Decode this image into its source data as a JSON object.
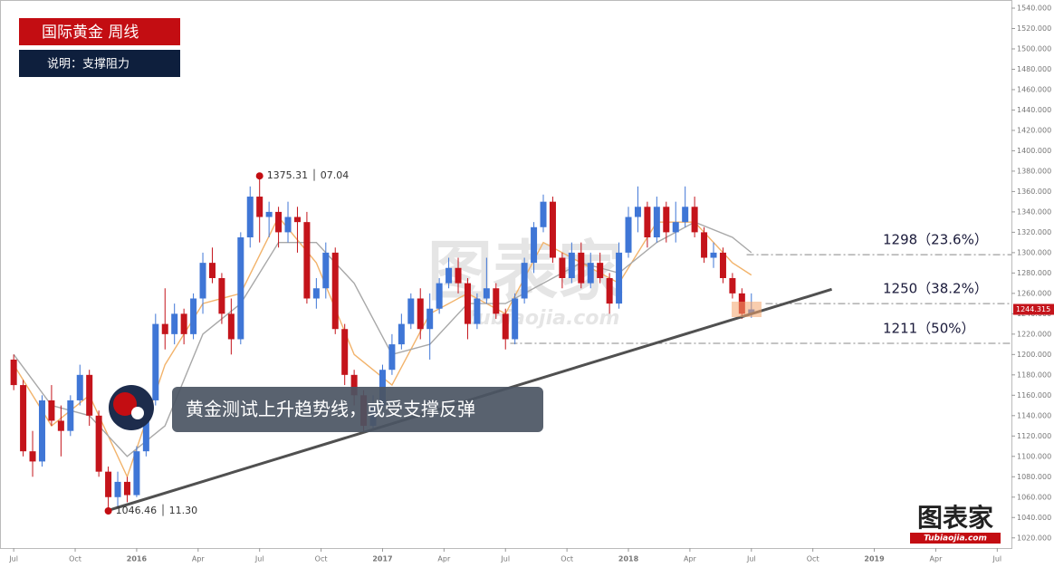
{
  "chart_data": {
    "type": "candlestick",
    "title": "国际黄金 周线",
    "subtitle": "说明：支撑阻力",
    "callout": "黄金测试上升趋势线，或受支撑反弹",
    "watermark": "图表家",
    "watermark_sub": "tubiaojia.com",
    "logo": "图表家",
    "logo_sub": "Tubiaojia.com",
    "up_color": "#3f76d6",
    "down_color": "#c4141b",
    "x": [
      0,
      2,
      4,
      6,
      8,
      10,
      12,
      14,
      16,
      18,
      20,
      22,
      24,
      26,
      28,
      30,
      32,
      34,
      36,
      38,
      40,
      42,
      44,
      46,
      48,
      50,
      52,
      54,
      56,
      58,
      60,
      62,
      64,
      66,
      68,
      70,
      72,
      74,
      76,
      78,
      80,
      82,
      84,
      86,
      88,
      90,
      92,
      94,
      96,
      98,
      100,
      102,
      104,
      106,
      108,
      110,
      112,
      114,
      116,
      118,
      120,
      122,
      124,
      126,
      128,
      130,
      132,
      134,
      136,
      138,
      140,
      142,
      144,
      146,
      148,
      150,
      152,
      154,
      156
    ],
    "open": [
      1195,
      1170,
      1105,
      1095,
      1155,
      1135,
      1125,
      1155,
      1180,
      1140,
      1085,
      1060,
      1075,
      1062,
      1105,
      1155,
      1230,
      1220,
      1240,
      1220,
      1255,
      1290,
      1275,
      1240,
      1215,
      1315,
      1355,
      1335,
      1340,
      1320,
      1335,
      1330,
      1255,
      1265,
      1300,
      1225,
      1180,
      1160,
      1130,
      1150,
      1185,
      1210,
      1230,
      1255,
      1225,
      1245,
      1270,
      1285,
      1270,
      1230,
      1255,
      1265,
      1240,
      1215,
      1255,
      1290,
      1325,
      1350,
      1295,
      1275,
      1300,
      1270,
      1290,
      1275,
      1250,
      1300,
      1335,
      1345,
      1315,
      1345,
      1320,
      1330,
      1345,
      1320,
      1295,
      1300,
      1275,
      1260,
      1240
    ],
    "high": [
      1200,
      1175,
      1125,
      1160,
      1170,
      1150,
      1160,
      1190,
      1185,
      1145,
      1090,
      1085,
      1080,
      1110,
      1160,
      1240,
      1265,
      1250,
      1245,
      1260,
      1300,
      1305,
      1280,
      1255,
      1320,
      1365,
      1375.31,
      1350,
      1345,
      1350,
      1345,
      1340,
      1275,
      1310,
      1305,
      1230,
      1185,
      1165,
      1160,
      1190,
      1220,
      1240,
      1260,
      1265,
      1260,
      1275,
      1295,
      1295,
      1275,
      1260,
      1295,
      1270,
      1245,
      1260,
      1295,
      1330,
      1357,
      1355,
      1300,
      1310,
      1310,
      1300,
      1300,
      1280,
      1310,
      1345,
      1365,
      1350,
      1355,
      1350,
      1350,
      1365,
      1355,
      1325,
      1310,
      1305,
      1280,
      1265,
      1260
    ],
    "low": [
      1165,
      1100,
      1080,
      1090,
      1130,
      1100,
      1120,
      1150,
      1130,
      1080,
      1046.46,
      1050,
      1055,
      1060,
      1100,
      1150,
      1205,
      1210,
      1210,
      1215,
      1240,
      1270,
      1230,
      1200,
      1210,
      1305,
      1310,
      1315,
      1305,
      1310,
      1300,
      1250,
      1245,
      1255,
      1220,
      1170,
      1150,
      1123,
      1125,
      1145,
      1180,
      1205,
      1225,
      1215,
      1195,
      1240,
      1265,
      1260,
      1215,
      1225,
      1250,
      1235,
      1205,
      1210,
      1250,
      1280,
      1320,
      1290,
      1265,
      1270,
      1265,
      1265,
      1270,
      1240,
      1245,
      1295,
      1320,
      1305,
      1310,
      1310,
      1310,
      1325,
      1315,
      1290,
      1285,
      1270,
      1255,
      1235,
      1236
    ],
    "close": [
      1170,
      1105,
      1095,
      1155,
      1135,
      1125,
      1155,
      1180,
      1140,
      1085,
      1060,
      1075,
      1062,
      1105,
      1155,
      1230,
      1220,
      1240,
      1220,
      1255,
      1290,
      1275,
      1240,
      1215,
      1315,
      1355,
      1335,
      1340,
      1320,
      1335,
      1330,
      1255,
      1265,
      1300,
      1225,
      1180,
      1160,
      1130,
      1150,
      1185,
      1210,
      1230,
      1255,
      1225,
      1245,
      1270,
      1285,
      1270,
      1230,
      1255,
      1265,
      1240,
      1215,
      1255,
      1290,
      1325,
      1350,
      1295,
      1275,
      1300,
      1270,
      1290,
      1275,
      1250,
      1300,
      1335,
      1345,
      1315,
      1345,
      1320,
      1330,
      1345,
      1320,
      1295,
      1300,
      1275,
      1260,
      1240,
      1244.315
    ],
    "last_label": "1244.315",
    "lines": [
      {
        "color": "#f2b36b",
        "x": [
          0,
          8,
          16,
          24,
          32,
          40,
          48,
          56,
          64,
          72,
          80,
          88,
          96,
          104,
          112,
          120,
          128,
          136,
          144,
          152,
          156
        ],
        "values": [
          1190,
          1130,
          1160,
          1080,
          1190,
          1250,
          1260,
          1335,
          1290,
          1200,
          1170,
          1240,
          1260,
          1240,
          1310,
          1290,
          1270,
          1330,
          1330,
          1290,
          1278
        ]
      },
      {
        "color": "#a8a8a8",
        "x": [
          0,
          8,
          16,
          24,
          32,
          40,
          48,
          56,
          64,
          72,
          80,
          88,
          96,
          104,
          112,
          120,
          128,
          136,
          144,
          152,
          156
        ],
        "values": [
          1200,
          1150,
          1140,
          1100,
          1130,
          1220,
          1250,
          1310,
          1310,
          1270,
          1200,
          1210,
          1250,
          1250,
          1270,
          1290,
          1280,
          1310,
          1330,
          1315,
          1300
        ]
      }
    ],
    "trendline": {
      "color": "#505050",
      "x": [
        20,
        173
      ],
      "values": [
        1047,
        1264
      ]
    },
    "levels": [
      {
        "value": 1298,
        "start": 155,
        "label": "1298（23.6%）"
      },
      {
        "value": 1250,
        "start": 159,
        "label": "1250（38.2%）"
      },
      {
        "value": 1211,
        "start": 105,
        "label": "1211（50%）"
      }
    ],
    "points": [
      {
        "x": 52,
        "value": 1375.31,
        "label": "1375.31 │ 07.04"
      },
      {
        "x": 20,
        "value": 1046.46,
        "label": "1046.46 │ 11.30"
      }
    ],
    "xlim": [
      -2.9,
      211
    ],
    "xticks": [
      {
        "value": 0,
        "label": "Jul"
      },
      {
        "value": 13,
        "label": "Oct"
      },
      {
        "value": 26,
        "label": "2016"
      },
      {
        "value": 39,
        "label": "Apr"
      },
      {
        "value": 52,
        "label": "Jul"
      },
      {
        "value": 65,
        "label": "Oct"
      },
      {
        "value": 78,
        "label": "2017"
      },
      {
        "value": 91,
        "label": "Apr"
      },
      {
        "value": 104,
        "label": "Jul"
      },
      {
        "value": 117,
        "label": "Oct"
      },
      {
        "value": 130,
        "label": "2018"
      },
      {
        "value": 143,
        "label": "Apr"
      },
      {
        "value": 156,
        "label": "Jul"
      },
      {
        "value": 169,
        "label": "Oct"
      },
      {
        "value": 182,
        "label": "2019"
      },
      {
        "value": 195,
        "label": "Apr"
      },
      {
        "value": 208,
        "label": "Jul"
      }
    ],
    "ylim": [
      1010,
      1548
    ],
    "yticks": [
      {
        "value": 1020,
        "label": "1020.000"
      },
      {
        "value": 1040,
        "label": "1040.000"
      },
      {
        "value": 1060,
        "label": "1060.000"
      },
      {
        "value": 1080,
        "label": "1080.000"
      },
      {
        "value": 1100,
        "label": "1100.000"
      },
      {
        "value": 1120,
        "label": "1120.000"
      },
      {
        "value": 1140,
        "label": "1140.000"
      },
      {
        "value": 1160,
        "label": "1160.000"
      },
      {
        "value": 1180,
        "label": "1180.000"
      },
      {
        "value": 1200,
        "label": "1200.000"
      },
      {
        "value": 1220,
        "label": "1220.000"
      },
      {
        "value": 1240,
        "label": "1240.000"
      },
      {
        "value": 1260,
        "label": "1260.000"
      },
      {
        "value": 1280,
        "label": "1280.000"
      },
      {
        "value": 1300,
        "label": "1300.000"
      },
      {
        "value": 1320,
        "label": "1320.000"
      },
      {
        "value": 1340,
        "label": "1340.000"
      },
      {
        "value": 1360,
        "label": "1360.000"
      },
      {
        "value": 1380,
        "label": "1380.000"
      },
      {
        "value": 1400,
        "label": "1400.000"
      },
      {
        "value": 1420,
        "label": "1420.000"
      },
      {
        "value": 1440,
        "label": "1440.000"
      },
      {
        "value": 1460,
        "label": "1460.000"
      },
      {
        "value": 1480,
        "label": "1480.000"
      },
      {
        "value": 1500,
        "label": "1500.000"
      },
      {
        "value": 1520,
        "label": "1520.000"
      },
      {
        "value": 1540,
        "label": "1540.000"
      }
    ]
  }
}
